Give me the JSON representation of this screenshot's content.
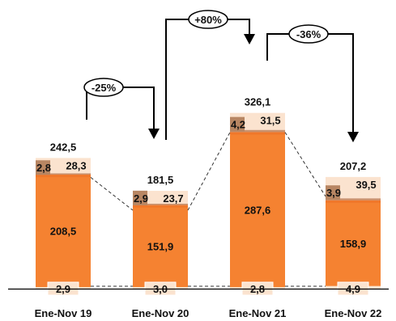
{
  "chart_data": {
    "type": "bar",
    "stacked": true,
    "categories": [
      "Ene-Nov 19",
      "Ene-Nov 20",
      "Ene-Nov 21",
      "Ene-Nov 22"
    ],
    "totals": [
      "242,5",
      "181,5",
      "326,1",
      "207,2"
    ],
    "series": [
      {
        "values": [
          2.9,
          3.0,
          2.8,
          4.9
        ],
        "labels": [
          "2,9",
          "3,0",
          "2,8",
          "4,9"
        ],
        "color": "#fbe3cf"
      },
      {
        "values": [
          208.5,
          151.9,
          287.6,
          158.9
        ],
        "labels": [
          "208,5",
          "151,9",
          "287,6",
          "158,9"
        ],
        "color": "#f58231"
      },
      {
        "values": [
          2.8,
          2.9,
          4.2,
          3.9
        ],
        "labels": [
          "2,8",
          "2,9",
          "4,2",
          "3,9"
        ],
        "color": "#c9906c"
      },
      {
        "values": [
          28.3,
          23.7,
          31.5,
          39.5
        ],
        "labels": [
          "28,3",
          "23,7",
          "31,5",
          "39,5"
        ],
        "color": "#fbe3cf"
      }
    ],
    "changes": [
      {
        "from": 0,
        "to": 1,
        "label": "-25%"
      },
      {
        "from": 1,
        "to": 2,
        "label": "+80%"
      },
      {
        "from": 2,
        "to": 3,
        "label": "-36%"
      }
    ],
    "ylim": [
      0,
      330
    ],
    "grid": false,
    "legend": "none"
  }
}
